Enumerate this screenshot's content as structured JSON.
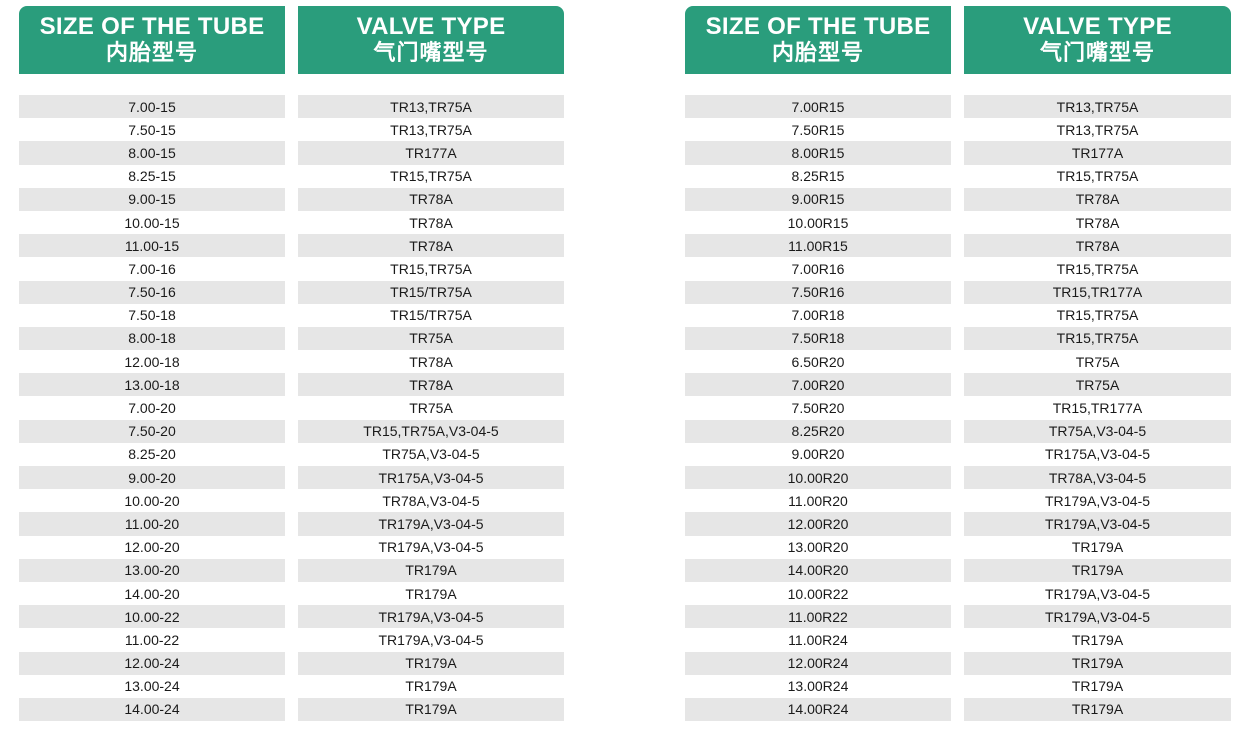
{
  "tables": [
    {
      "headers": {
        "size_en": "SIZE OF THE TUBE",
        "size_zh": "内胎型号",
        "valve_en": "VALVE TYPE",
        "valve_zh": "气门嘴型号"
      },
      "rows": [
        [
          "7.00-15",
          "TR13,TR75A"
        ],
        [
          "7.50-15",
          "TR13,TR75A"
        ],
        [
          "8.00-15",
          "TR177A"
        ],
        [
          "8.25-15",
          "TR15,TR75A"
        ],
        [
          "9.00-15",
          "TR78A"
        ],
        [
          "10.00-15",
          "TR78A"
        ],
        [
          "11.00-15",
          "TR78A"
        ],
        [
          "7.00-16",
          "TR15,TR75A"
        ],
        [
          "7.50-16",
          "TR15/TR75A"
        ],
        [
          "7.50-18",
          "TR15/TR75A"
        ],
        [
          "8.00-18",
          "TR75A"
        ],
        [
          "12.00-18",
          "TR78A"
        ],
        [
          "13.00-18",
          "TR78A"
        ],
        [
          "7.00-20",
          "TR75A"
        ],
        [
          "7.50-20",
          "TR15,TR75A,V3-04-5"
        ],
        [
          "8.25-20",
          "TR75A,V3-04-5"
        ],
        [
          "9.00-20",
          "TR175A,V3-04-5"
        ],
        [
          "10.00-20",
          "TR78A,V3-04-5"
        ],
        [
          "11.00-20",
          "TR179A,V3-04-5"
        ],
        [
          "12.00-20",
          "TR179A,V3-04-5"
        ],
        [
          "13.00-20",
          "TR179A"
        ],
        [
          "14.00-20",
          "TR179A"
        ],
        [
          "10.00-22",
          "TR179A,V3-04-5"
        ],
        [
          "11.00-22",
          "TR179A,V3-04-5"
        ],
        [
          "12.00-24",
          "TR179A"
        ],
        [
          "13.00-24",
          "TR179A"
        ],
        [
          "14.00-24",
          "TR179A"
        ]
      ]
    },
    {
      "headers": {
        "size_en": "SIZE OF THE TUBE",
        "size_zh": "内胎型号",
        "valve_en": "VALVE TYPE",
        "valve_zh": "气门嘴型号"
      },
      "rows": [
        [
          "7.00R15",
          "TR13,TR75A"
        ],
        [
          "7.50R15",
          "TR13,TR75A"
        ],
        [
          "8.00R15",
          "TR177A"
        ],
        [
          "8.25R15",
          "TR15,TR75A"
        ],
        [
          "9.00R15",
          "TR78A"
        ],
        [
          "10.00R15",
          "TR78A"
        ],
        [
          "11.00R15",
          "TR78A"
        ],
        [
          "7.00R16",
          "TR15,TR75A"
        ],
        [
          "7.50R16",
          "TR15,TR177A"
        ],
        [
          "7.00R18",
          "TR15,TR75A"
        ],
        [
          "7.50R18",
          "TR15,TR75A"
        ],
        [
          "6.50R20",
          "TR75A"
        ],
        [
          "7.00R20",
          "TR75A"
        ],
        [
          "7.50R20",
          "TR15,TR177A"
        ],
        [
          "8.25R20",
          "TR75A,V3-04-5"
        ],
        [
          "9.00R20",
          "TR175A,V3-04-5"
        ],
        [
          "10.00R20",
          "TR78A,V3-04-5"
        ],
        [
          "11.00R20",
          "TR179A,V3-04-5"
        ],
        [
          "12.00R20",
          "TR179A,V3-04-5"
        ],
        [
          "13.00R20",
          "TR179A"
        ],
        [
          "14.00R20",
          "TR179A"
        ],
        [
          "10.00R22",
          "TR179A,V3-04-5"
        ],
        [
          "11.00R22",
          "TR179A,V3-04-5"
        ],
        [
          "11.00R24",
          "TR179A"
        ],
        [
          "12.00R24",
          "TR179A"
        ],
        [
          "13.00R24",
          "TR179A"
        ],
        [
          "14.00R24",
          "TR179A"
        ]
      ]
    }
  ],
  "colors": {
    "header_bg": "#2a9d7c",
    "stripe": "#e6e6e6"
  }
}
